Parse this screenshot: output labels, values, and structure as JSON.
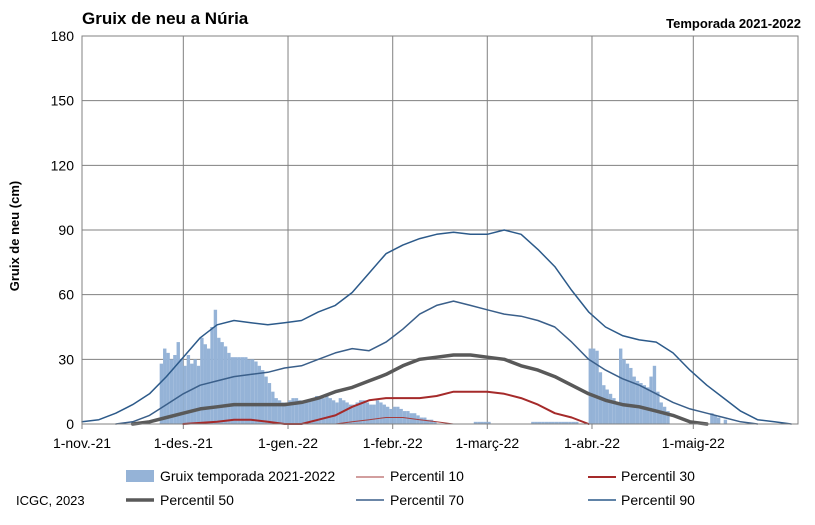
{
  "title": "Gruix de neu a Núria",
  "subtitle": "Temporada 2021-2022",
  "credit": "ICGC, 2023",
  "chart_data": {
    "type": "bar+line",
    "ylabel": "Gruix de neu (cm)",
    "xlabel": "",
    "ylim": [
      0,
      180
    ],
    "yticks": [
      0,
      30,
      60,
      90,
      120,
      150,
      180
    ],
    "x_range_days": [
      0,
      212
    ],
    "x_start_date": "2021-11-01",
    "xticks": [
      {
        "day": 0,
        "label": "1-nov.-21"
      },
      {
        "day": 30,
        "label": "1-des.-21"
      },
      {
        "day": 61,
        "label": "1-gen.-22"
      },
      {
        "day": 92,
        "label": "1-febr.-22"
      },
      {
        "day": 120,
        "label": "1-març-22"
      },
      {
        "day": 151,
        "label": "1-abr.-22"
      },
      {
        "day": 181,
        "label": "1-maig-22"
      }
    ],
    "grid": true,
    "legend_position": "bottom",
    "bars": {
      "name": "Gruix temporada 2021-2022",
      "color": "#95b3d7",
      "values": [
        [
          23,
          28
        ],
        [
          24,
          35
        ],
        [
          25,
          33
        ],
        [
          26,
          30
        ],
        [
          27,
          32
        ],
        [
          28,
          38
        ],
        [
          29,
          30
        ],
        [
          30,
          27
        ],
        [
          31,
          32
        ],
        [
          32,
          28
        ],
        [
          33,
          30
        ],
        [
          34,
          27
        ],
        [
          35,
          40
        ],
        [
          36,
          37
        ],
        [
          37,
          35
        ],
        [
          38,
          45
        ],
        [
          39,
          53
        ],
        [
          40,
          40
        ],
        [
          41,
          38
        ],
        [
          42,
          36
        ],
        [
          43,
          33
        ],
        [
          44,
          31
        ],
        [
          45,
          31
        ],
        [
          46,
          31
        ],
        [
          47,
          31
        ],
        [
          48,
          31
        ],
        [
          49,
          30
        ],
        [
          50,
          30
        ],
        [
          51,
          29
        ],
        [
          52,
          27
        ],
        [
          53,
          25
        ],
        [
          54,
          22
        ],
        [
          55,
          19
        ],
        [
          56,
          15
        ],
        [
          57,
          12
        ],
        [
          58,
          11
        ],
        [
          59,
          10
        ],
        [
          60,
          10
        ],
        [
          61,
          11
        ],
        [
          62,
          12
        ],
        [
          63,
          12
        ],
        [
          64,
          11
        ],
        [
          65,
          10
        ],
        [
          66,
          10
        ],
        [
          67,
          11
        ],
        [
          68,
          12
        ],
        [
          69,
          13
        ],
        [
          70,
          13
        ],
        [
          71,
          12
        ],
        [
          72,
          13
        ],
        [
          73,
          12
        ],
        [
          74,
          11
        ],
        [
          75,
          10
        ],
        [
          76,
          12
        ],
        [
          77,
          11
        ],
        [
          78,
          10
        ],
        [
          79,
          9
        ],
        [
          80,
          9
        ],
        [
          81,
          10
        ],
        [
          82,
          11
        ],
        [
          83,
          11
        ],
        [
          84,
          10
        ],
        [
          85,
          9
        ],
        [
          86,
          9
        ],
        [
          87,
          11
        ],
        [
          88,
          10
        ],
        [
          89,
          9
        ],
        [
          90,
          8
        ],
        [
          91,
          7
        ],
        [
          92,
          8
        ],
        [
          93,
          8
        ],
        [
          94,
          7
        ],
        [
          95,
          6
        ],
        [
          96,
          6
        ],
        [
          97,
          5
        ],
        [
          98,
          5
        ],
        [
          99,
          4
        ],
        [
          100,
          3
        ],
        [
          101,
          3
        ],
        [
          102,
          2
        ],
        [
          103,
          2
        ],
        [
          104,
          1
        ],
        [
          116,
          1
        ],
        [
          117,
          1
        ],
        [
          118,
          1
        ],
        [
          119,
          1
        ],
        [
          120,
          1
        ],
        [
          133,
          1
        ],
        [
          134,
          1
        ],
        [
          135,
          1
        ],
        [
          136,
          1
        ],
        [
          137,
          1
        ],
        [
          138,
          1
        ],
        [
          139,
          1
        ],
        [
          140,
          1
        ],
        [
          141,
          1
        ],
        [
          142,
          1
        ],
        [
          143,
          1
        ],
        [
          144,
          1
        ],
        [
          145,
          1
        ],
        [
          146,
          1
        ],
        [
          150,
          35
        ],
        [
          151,
          35
        ],
        [
          152,
          34
        ],
        [
          153,
          24
        ],
        [
          154,
          18
        ],
        [
          155,
          16
        ],
        [
          156,
          14
        ],
        [
          157,
          12
        ],
        [
          158,
          10
        ],
        [
          159,
          35
        ],
        [
          160,
          30
        ],
        [
          161,
          28
        ],
        [
          162,
          26
        ],
        [
          163,
          22
        ],
        [
          164,
          20
        ],
        [
          165,
          19
        ],
        [
          166,
          18
        ],
        [
          167,
          17
        ],
        [
          168,
          22
        ],
        [
          169,
          27
        ],
        [
          170,
          15
        ],
        [
          171,
          10
        ],
        [
          172,
          8
        ],
        [
          173,
          6
        ],
        [
          186,
          5
        ],
        [
          187,
          4
        ],
        [
          188,
          3
        ],
        [
          190,
          2
        ]
      ]
    },
    "series": [
      {
        "name": "Percentil 10",
        "color": "#a63d3d",
        "width": 1,
        "points": [
          [
            75,
            0
          ],
          [
            80,
            1
          ],
          [
            85,
            2
          ],
          [
            90,
            3
          ],
          [
            95,
            3
          ],
          [
            100,
            2
          ],
          [
            105,
            1
          ],
          [
            110,
            0
          ]
        ]
      },
      {
        "name": "Percentil 30",
        "color": "#a52a2a",
        "width": 2,
        "points": [
          [
            30,
            0
          ],
          [
            40,
            1
          ],
          [
            45,
            2
          ],
          [
            50,
            2
          ],
          [
            55,
            1
          ],
          [
            60,
            0
          ],
          [
            65,
            0
          ],
          [
            70,
            2
          ],
          [
            75,
            4
          ],
          [
            80,
            8
          ],
          [
            85,
            11
          ],
          [
            90,
            12
          ],
          [
            95,
            12
          ],
          [
            100,
            12
          ],
          [
            105,
            13
          ],
          [
            110,
            15
          ],
          [
            115,
            15
          ],
          [
            120,
            15
          ],
          [
            125,
            14
          ],
          [
            130,
            12
          ],
          [
            135,
            9
          ],
          [
            140,
            5
          ],
          [
            145,
            3
          ],
          [
            150,
            0
          ]
        ]
      },
      {
        "name": "Percentil 50",
        "color": "#595959",
        "width": 3.5,
        "points": [
          [
            15,
            0
          ],
          [
            20,
            1
          ],
          [
            25,
            3
          ],
          [
            30,
            5
          ],
          [
            35,
            7
          ],
          [
            40,
            8
          ],
          [
            45,
            9
          ],
          [
            50,
            9
          ],
          [
            55,
            9
          ],
          [
            60,
            9
          ],
          [
            65,
            10
          ],
          [
            70,
            12
          ],
          [
            75,
            15
          ],
          [
            80,
            17
          ],
          [
            85,
            20
          ],
          [
            90,
            23
          ],
          [
            95,
            27
          ],
          [
            100,
            30
          ],
          [
            105,
            31
          ],
          [
            110,
            32
          ],
          [
            115,
            32
          ],
          [
            120,
            31
          ],
          [
            125,
            30
          ],
          [
            130,
            27
          ],
          [
            135,
            25
          ],
          [
            140,
            22
          ],
          [
            145,
            18
          ],
          [
            150,
            14
          ],
          [
            155,
            11
          ],
          [
            160,
            9
          ],
          [
            165,
            8
          ],
          [
            170,
            6
          ],
          [
            175,
            4
          ],
          [
            180,
            1
          ],
          [
            185,
            0
          ]
        ]
      },
      {
        "name": "Percentil 70",
        "color": "#3a5f8a",
        "width": 1.5,
        "points": [
          [
            10,
            0
          ],
          [
            15,
            1
          ],
          [
            20,
            4
          ],
          [
            25,
            9
          ],
          [
            30,
            14
          ],
          [
            35,
            18
          ],
          [
            40,
            20
          ],
          [
            45,
            22
          ],
          [
            50,
            23
          ],
          [
            55,
            24
          ],
          [
            60,
            26
          ],
          [
            65,
            27
          ],
          [
            70,
            30
          ],
          [
            75,
            33
          ],
          [
            80,
            35
          ],
          [
            85,
            34
          ],
          [
            90,
            38
          ],
          [
            95,
            44
          ],
          [
            100,
            51
          ],
          [
            105,
            55
          ],
          [
            110,
            57
          ],
          [
            115,
            55
          ],
          [
            120,
            53
          ],
          [
            125,
            51
          ],
          [
            130,
            50
          ],
          [
            135,
            48
          ],
          [
            140,
            45
          ],
          [
            145,
            38
          ],
          [
            150,
            30
          ],
          [
            155,
            25
          ],
          [
            160,
            21
          ],
          [
            165,
            18
          ],
          [
            170,
            14
          ],
          [
            175,
            10
          ],
          [
            180,
            7
          ],
          [
            185,
            5
          ],
          [
            190,
            3
          ],
          [
            195,
            1
          ],
          [
            200,
            0
          ]
        ]
      },
      {
        "name": "Percentil 90",
        "color": "#2c5a8a",
        "width": 1.5,
        "points": [
          [
            0,
            1
          ],
          [
            5,
            2
          ],
          [
            10,
            5
          ],
          [
            15,
            9
          ],
          [
            20,
            14
          ],
          [
            25,
            22
          ],
          [
            30,
            31
          ],
          [
            35,
            40
          ],
          [
            40,
            46
          ],
          [
            45,
            48
          ],
          [
            50,
            47
          ],
          [
            55,
            46
          ],
          [
            60,
            47
          ],
          [
            65,
            48
          ],
          [
            70,
            52
          ],
          [
            75,
            55
          ],
          [
            80,
            61
          ],
          [
            85,
            70
          ],
          [
            90,
            79
          ],
          [
            95,
            83
          ],
          [
            100,
            86
          ],
          [
            105,
            88
          ],
          [
            110,
            89
          ],
          [
            115,
            88
          ],
          [
            120,
            88
          ],
          [
            125,
            90
          ],
          [
            130,
            88
          ],
          [
            135,
            81
          ],
          [
            140,
            73
          ],
          [
            145,
            62
          ],
          [
            150,
            52
          ],
          [
            155,
            45
          ],
          [
            160,
            41
          ],
          [
            165,
            39
          ],
          [
            170,
            38
          ],
          [
            175,
            33
          ],
          [
            180,
            25
          ],
          [
            185,
            18
          ],
          [
            190,
            12
          ],
          [
            195,
            6
          ],
          [
            200,
            2
          ],
          [
            205,
            1
          ],
          [
            210,
            0
          ]
        ]
      }
    ]
  }
}
